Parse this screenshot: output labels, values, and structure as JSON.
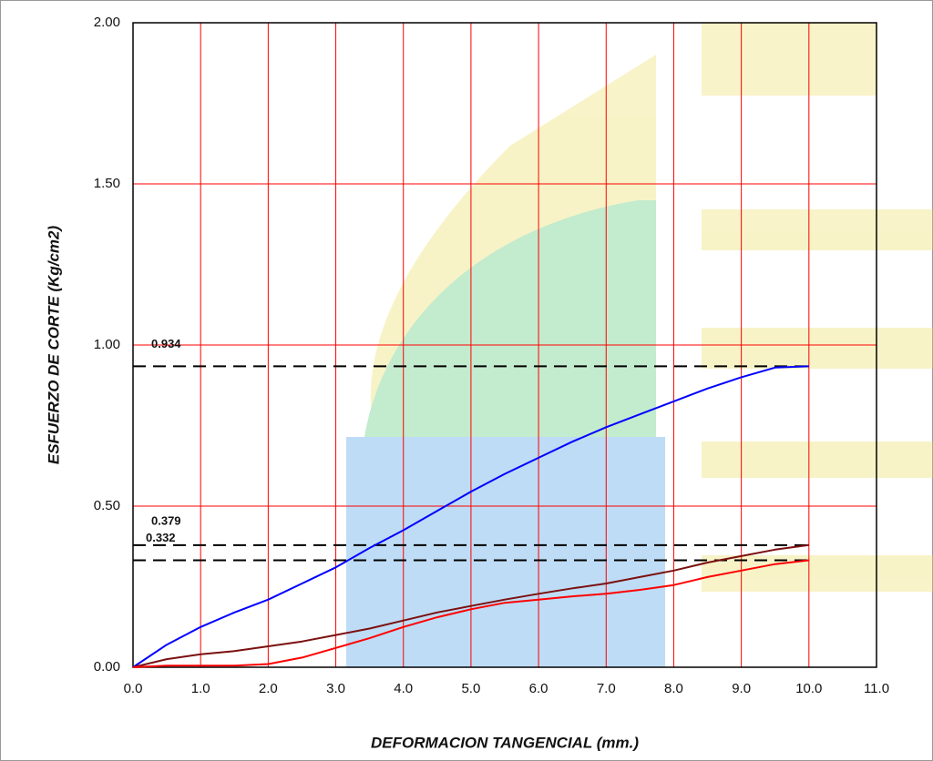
{
  "chart_data": {
    "type": "line",
    "x_label": "DEFORMACION TANGENCIAL (mm.)",
    "y_label": "ESFUERZO DE CORTE (Kg/cm2)",
    "x": [
      0,
      0.5,
      1,
      1.5,
      2,
      2.5,
      3,
      3.5,
      4,
      4.5,
      5,
      5.5,
      6,
      6.5,
      7,
      7.5,
      8,
      8.5,
      9,
      9.5,
      10
    ],
    "series": [
      {
        "color": "#0000ff",
        "values": [
          0,
          0.07,
          0.125,
          0.17,
          0.21,
          0.26,
          0.31,
          0.37,
          0.425,
          0.485,
          0.545,
          0.6,
          0.65,
          0.7,
          0.745,
          0.785,
          0.825,
          0.865,
          0.9,
          0.93,
          0.934
        ]
      },
      {
        "color": "#7b1010",
        "values": [
          0,
          0.025,
          0.04,
          0.05,
          0.065,
          0.08,
          0.1,
          0.12,
          0.145,
          0.17,
          0.19,
          0.21,
          0.228,
          0.245,
          0.26,
          0.28,
          0.3,
          0.325,
          0.345,
          0.365,
          0.379
        ]
      },
      {
        "color": "#ff0000",
        "values": [
          0,
          0.005,
          0.005,
          0.005,
          0.01,
          0.03,
          0.06,
          0.09,
          0.125,
          0.155,
          0.18,
          0.2,
          0.21,
          0.22,
          0.228,
          0.24,
          0.255,
          0.28,
          0.3,
          0.32,
          0.332
        ]
      }
    ],
    "reference_lines": [
      0.934,
      0.379,
      0.332
    ],
    "xlim": [
      0,
      11
    ],
    "ylim": [
      0,
      2
    ],
    "xticks": [
      {
        "value": 0,
        "label": "0.0"
      },
      {
        "value": 1,
        "label": "1.0"
      },
      {
        "value": 2,
        "label": "2.0"
      },
      {
        "value": 3,
        "label": "3.0"
      },
      {
        "value": 4,
        "label": "4.0"
      },
      {
        "value": 5,
        "label": "5.0"
      },
      {
        "value": 6,
        "label": "6.0"
      },
      {
        "value": 7,
        "label": "7.0"
      },
      {
        "value": 8,
        "label": "8.0"
      },
      {
        "value": 9,
        "label": "9.0"
      },
      {
        "value": 10,
        "label": "10.0"
      },
      {
        "value": 11,
        "label": "11.0"
      }
    ],
    "yticks": [
      {
        "value": 0,
        "label": "0.00"
      },
      {
        "value": 0.5,
        "label": "0.50"
      },
      {
        "value": 1,
        "label": "1.00"
      },
      {
        "value": 1.5,
        "label": "1.50"
      },
      {
        "value": 2,
        "label": "2.00"
      }
    ],
    "grid": true,
    "grid_color": "#ff0000"
  }
}
